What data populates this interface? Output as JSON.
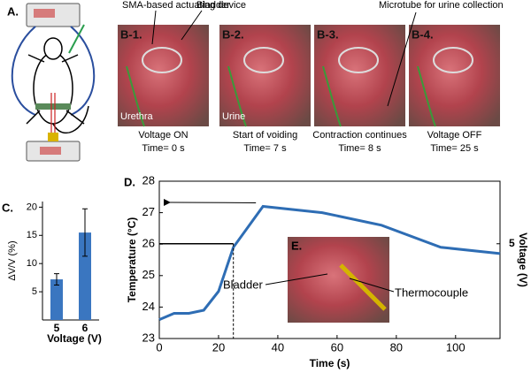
{
  "panel_a": {
    "label": "A."
  },
  "panel_b": {
    "photos": [
      {
        "label": "B-1.",
        "caption": "Voltage ON",
        "time": "Time= 0 s"
      },
      {
        "label": "B-2.",
        "caption": "Start of voiding",
        "time": "Time= 7 s"
      },
      {
        "label": "B-3.",
        "caption": "Contraction continues",
        "time": "Time= 8 s"
      },
      {
        "label": "B-4.",
        "caption": "Voltage OFF",
        "time": "Time= 25 s"
      }
    ],
    "annotations": {
      "device": "SMA-based actuating device",
      "bladder": "Bladder",
      "microtube": "Microtube for urine collection",
      "urethra": "Urethra",
      "urine": "Urine"
    }
  },
  "chart_data": [
    {
      "type": "bar",
      "panel_label": "C.",
      "ylabel": "ΔV/V (%)",
      "xlabel": "Voltage (V)",
      "categories": [
        "5",
        "6"
      ],
      "values": [
        7.2,
        15.5
      ],
      "errors": [
        1.0,
        4.2
      ],
      "color": "#3a76c0",
      "ylim": [
        0,
        21
      ],
      "yticks": [
        5,
        10,
        15,
        20
      ]
    },
    {
      "type": "line",
      "panel_label": "D.",
      "xlabel": "Time (s)",
      "ylabel": "Temperature (°C)",
      "y2label": "Voltage (V)",
      "xlim": [
        0,
        115
      ],
      "xticks": [
        0,
        20,
        40,
        60,
        80,
        100
      ],
      "ylim": [
        23,
        28
      ],
      "yticks": [
        23,
        24,
        25,
        26,
        27,
        28
      ],
      "y2lim": [
        0,
        8.3
      ],
      "y2ticks": [
        5
      ],
      "series": [
        {
          "color": "#2e6db4",
          "x": [
            0,
            5,
            10,
            15,
            20,
            25,
            35,
            55,
            75,
            95,
            115
          ],
          "values": [
            23.6,
            23.8,
            23.8,
            23.9,
            24.5,
            25.9,
            27.2,
            27.0,
            26.6,
            25.9,
            25.7
          ]
        },
        {
          "color": "#000000",
          "axis": "y2",
          "x": [
            0,
            25
          ],
          "values": [
            5,
            5
          ]
        }
      ],
      "inset": {
        "label": "E.",
        "bladder": "Bladder",
        "thermocouple": "Thermocouple"
      }
    }
  ]
}
